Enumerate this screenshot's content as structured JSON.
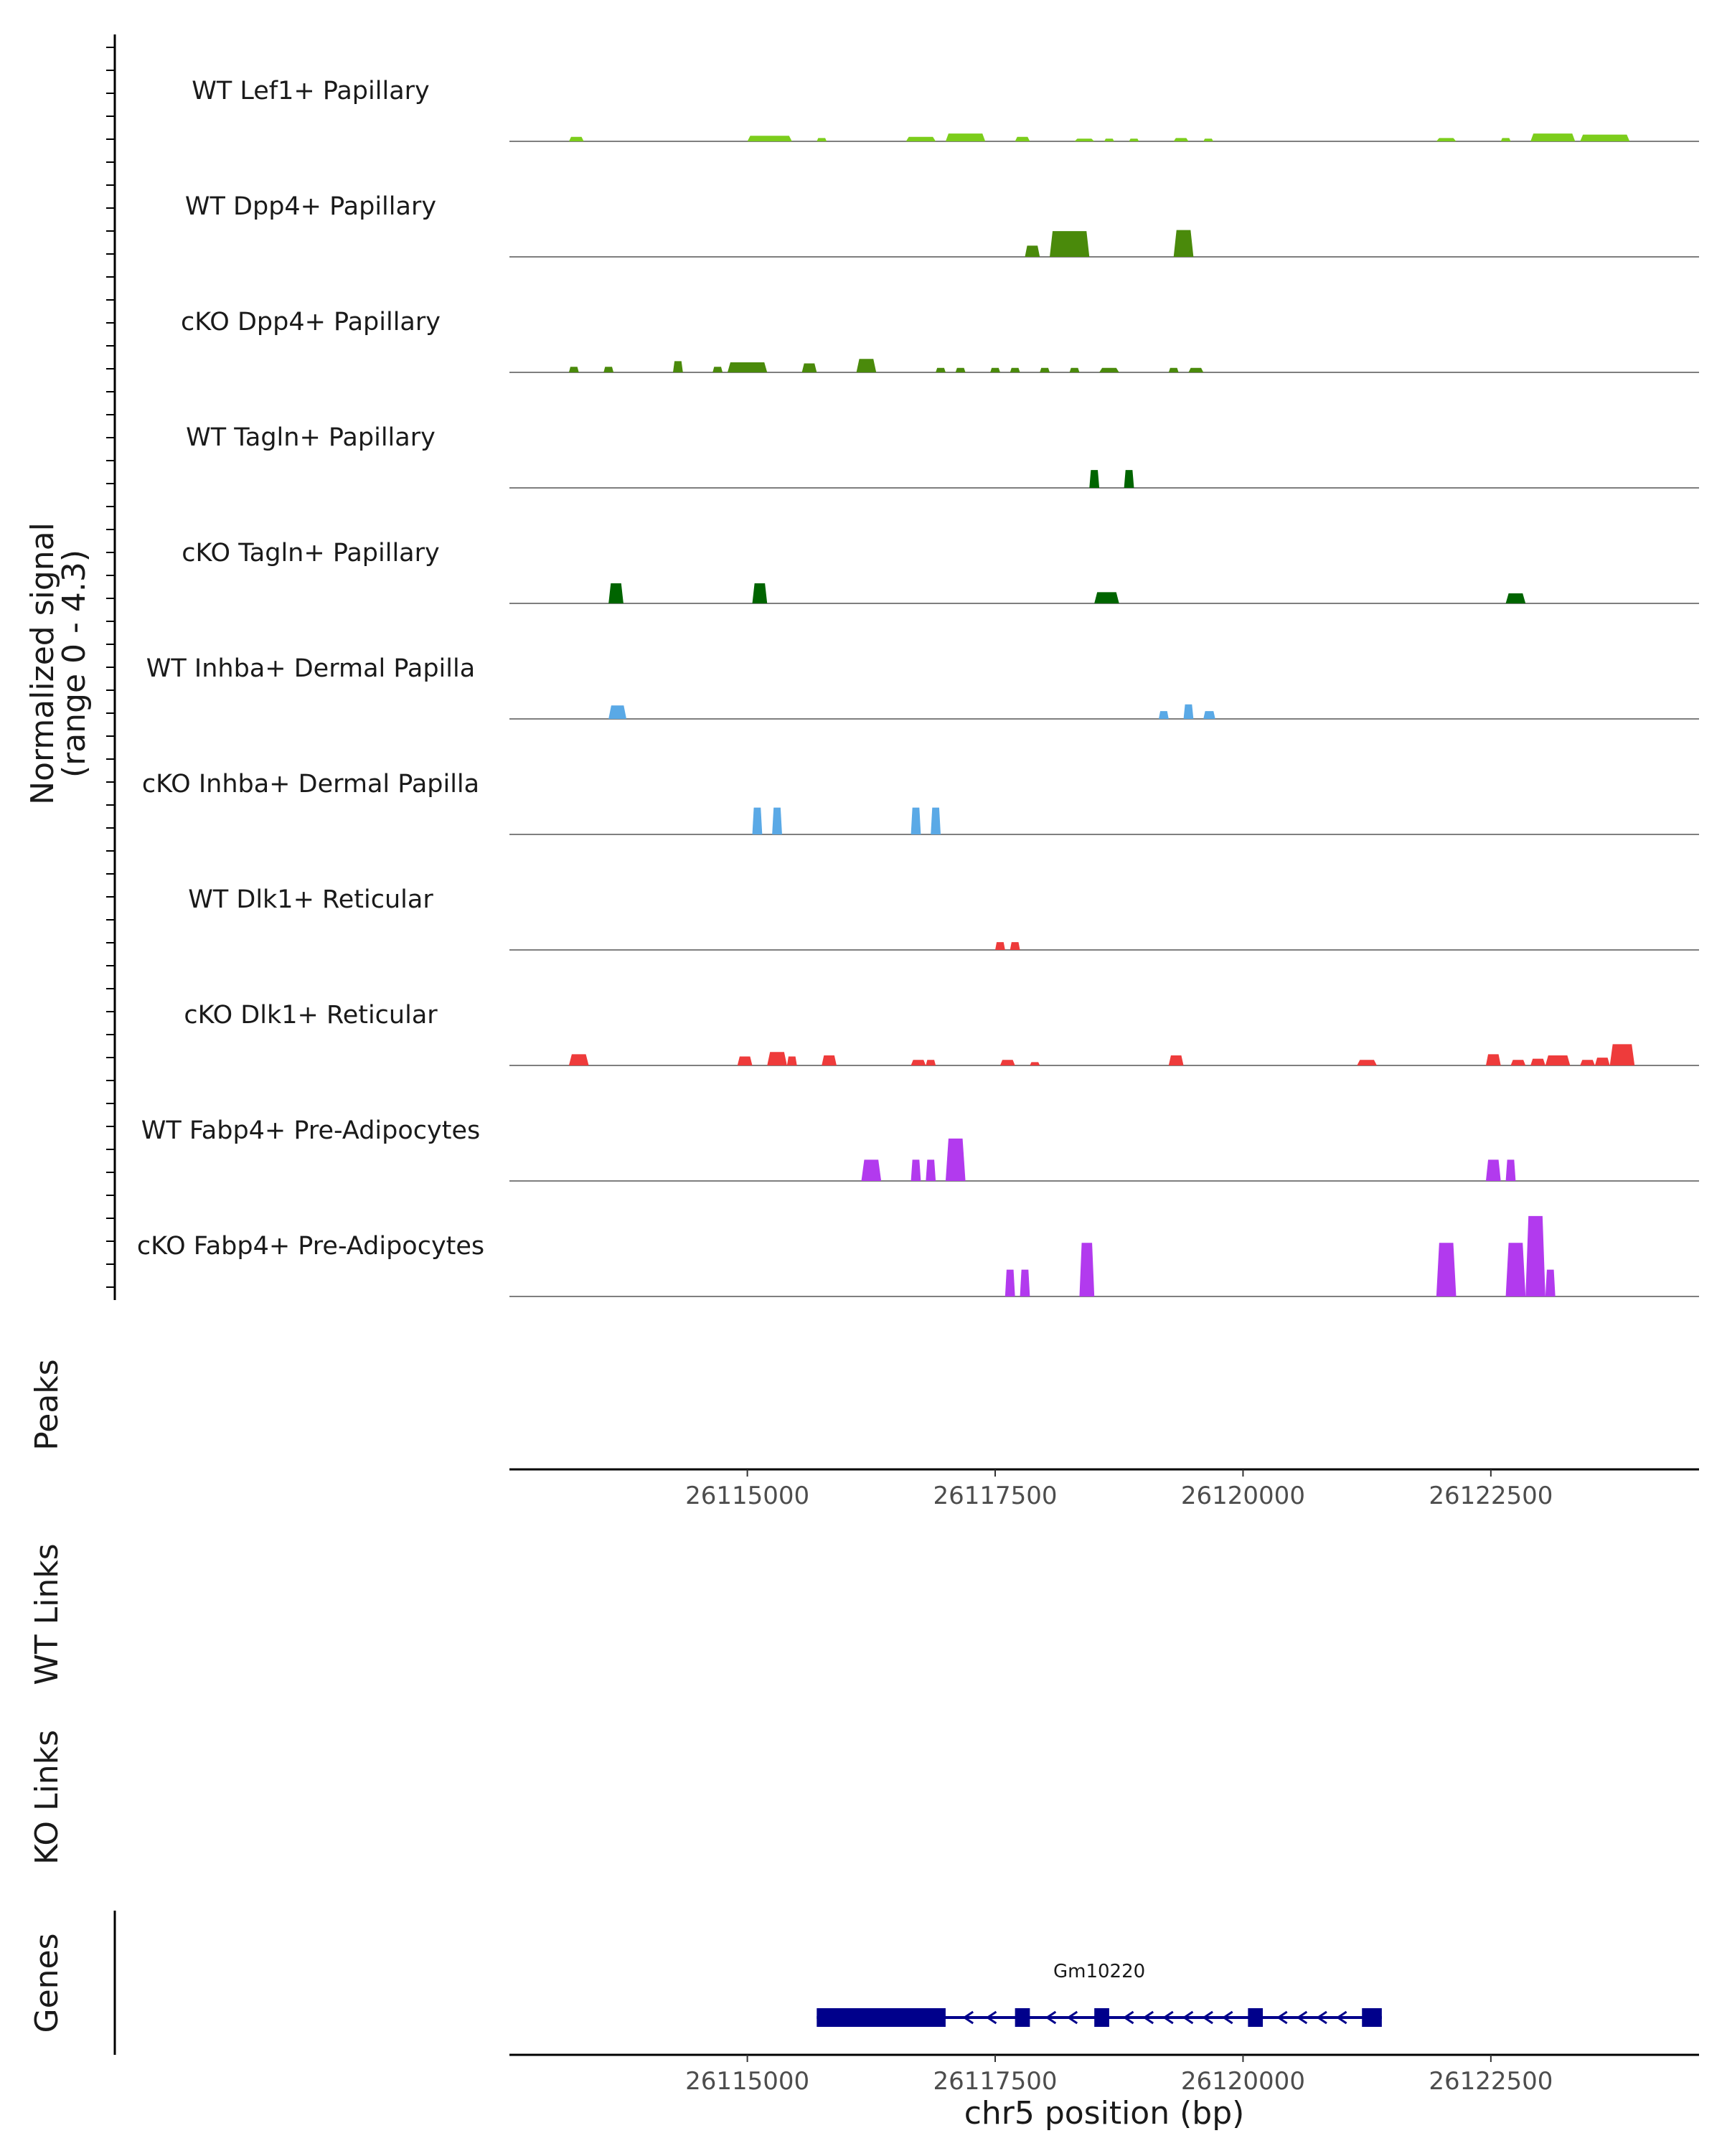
{
  "chart_data": {
    "type": "area",
    "title": "",
    "y_axis_label": "Normalized signal",
    "y_axis_sublabel": "(range 0 - 4.3)",
    "ylim": [
      0,
      4.3
    ],
    "region_xlim": [
      26112600,
      26124600
    ],
    "x_ticks": [
      {
        "value": 26115000,
        "label": "26115000"
      },
      {
        "value": 26117500,
        "label": "26117500"
      },
      {
        "value": 26120000,
        "label": "26120000"
      },
      {
        "value": 26122500,
        "label": "26122500"
      }
    ],
    "xlabel": "chr5 position (bp)",
    "panel_labels": {
      "peaks": "Peaks",
      "wt_links": "WT Links",
      "ko_links": "KO Links",
      "genes": "Genes"
    },
    "tracks": [
      {
        "name": "WT Lef1+ Papillary",
        "color": "#7CCD1C",
        "peaks": [
          [
            26113200,
            26113350,
            0.2
          ],
          [
            26115000,
            26115450,
            0.25
          ],
          [
            26115700,
            26115800,
            0.15
          ],
          [
            26116600,
            26116900,
            0.2
          ],
          [
            26117000,
            26117400,
            0.35
          ],
          [
            26117700,
            26117850,
            0.2
          ],
          [
            26118300,
            26118500,
            0.12
          ],
          [
            26118600,
            26118700,
            0.12
          ],
          [
            26118850,
            26118950,
            0.12
          ],
          [
            26119300,
            26119450,
            0.15
          ],
          [
            26119600,
            26119700,
            0.12
          ],
          [
            26121950,
            26122150,
            0.15
          ],
          [
            26122600,
            26122700,
            0.15
          ],
          [
            26122900,
            26123350,
            0.35
          ],
          [
            26123400,
            26123900,
            0.3
          ]
        ]
      },
      {
        "name": "WT Dpp4+ Papillary",
        "color": "#4A8A0B",
        "peaks": [
          [
            26117800,
            26117950,
            0.5
          ],
          [
            26118050,
            26118450,
            1.15
          ],
          [
            26119300,
            26119500,
            1.2
          ]
        ]
      },
      {
        "name": "cKO Dpp4+ Papillary",
        "color": "#4A8A0B",
        "peaks": [
          [
            26113200,
            26113300,
            0.25
          ],
          [
            26113550,
            26113650,
            0.25
          ],
          [
            26114250,
            26114350,
            0.5
          ],
          [
            26114650,
            26114750,
            0.25
          ],
          [
            26114800,
            26115200,
            0.45
          ],
          [
            26115550,
            26115700,
            0.4
          ],
          [
            26116100,
            26116300,
            0.6
          ],
          [
            26116900,
            26117000,
            0.2
          ],
          [
            26117100,
            26117200,
            0.2
          ],
          [
            26117450,
            26117550,
            0.2
          ],
          [
            26117650,
            26117750,
            0.2
          ],
          [
            26117950,
            26118050,
            0.2
          ],
          [
            26118250,
            26118350,
            0.2
          ],
          [
            26118550,
            26118750,
            0.2
          ],
          [
            26119250,
            26119350,
            0.2
          ],
          [
            26119450,
            26119600,
            0.2
          ]
        ]
      },
      {
        "name": "WT Tagln+ Papillary",
        "color": "#006400",
        "peaks": [
          [
            26118450,
            26118550,
            0.8
          ],
          [
            26118800,
            26118900,
            0.8
          ]
        ]
      },
      {
        "name": "cKO Tagln+ Papillary",
        "color": "#006400",
        "peaks": [
          [
            26113600,
            26113750,
            0.9
          ],
          [
            26115050,
            26115200,
            0.9
          ],
          [
            26118500,
            26118750,
            0.5
          ],
          [
            26122650,
            26122850,
            0.45
          ]
        ]
      },
      {
        "name": "WT Inhba+ Dermal Papilla",
        "color": "#5AA9E6",
        "peaks": [
          [
            26113600,
            26113780,
            0.6
          ],
          [
            26119150,
            26119250,
            0.35
          ],
          [
            26119400,
            26119500,
            0.65
          ],
          [
            26119600,
            26119720,
            0.35
          ]
        ]
      },
      {
        "name": "cKO Inhba+ Dermal Papilla",
        "color": "#5AA9E6",
        "peaks": [
          [
            26115050,
            26115150,
            1.2
          ],
          [
            26115250,
            26115350,
            1.2
          ],
          [
            26116650,
            26116750,
            1.2
          ],
          [
            26116850,
            26116950,
            1.2
          ]
        ]
      },
      {
        "name": "WT Dlk1+ Reticular",
        "color": "#EE3B3B",
        "peaks": [
          [
            26117500,
            26117600,
            0.35
          ],
          [
            26117650,
            26117750,
            0.35
          ]
        ]
      },
      {
        "name": "cKO Dlk1+ Reticular",
        "color": "#EE3B3B",
        "peaks": [
          [
            26113200,
            26113400,
            0.5
          ],
          [
            26114900,
            26115050,
            0.4
          ],
          [
            26115200,
            26115400,
            0.6
          ],
          [
            26115400,
            26115500,
            0.4
          ],
          [
            26115750,
            26115900,
            0.45
          ],
          [
            26116650,
            26116800,
            0.25
          ],
          [
            26116800,
            26116900,
            0.25
          ],
          [
            26117550,
            26117700,
            0.25
          ],
          [
            26117850,
            26117950,
            0.15
          ],
          [
            26119250,
            26119400,
            0.45
          ],
          [
            26121150,
            26121350,
            0.25
          ],
          [
            26122450,
            26122600,
            0.5
          ],
          [
            26122700,
            26122850,
            0.25
          ],
          [
            26122900,
            26123050,
            0.3
          ],
          [
            26123050,
            26123300,
            0.45
          ],
          [
            26123400,
            26123550,
            0.25
          ],
          [
            26123550,
            26123700,
            0.35
          ],
          [
            26123700,
            26123950,
            0.95
          ]
        ]
      },
      {
        "name": "WT Fabp4+ Pre-Adipocytes",
        "color": "#B23AEE",
        "peaks": [
          [
            26116150,
            26116350,
            0.95
          ],
          [
            26116650,
            26116750,
            0.95
          ],
          [
            26116800,
            26116900,
            0.95
          ],
          [
            26117000,
            26117200,
            1.9
          ],
          [
            26122450,
            26122600,
            0.95
          ],
          [
            26122650,
            26122750,
            0.95
          ]
        ]
      },
      {
        "name": "cKO Fabp4+ Pre-Adipocytes",
        "color": "#B23AEE",
        "peaks": [
          [
            26117600,
            26117700,
            1.2
          ],
          [
            26117750,
            26117850,
            1.2
          ],
          [
            26118350,
            26118500,
            2.4
          ],
          [
            26121950,
            26122150,
            2.4
          ],
          [
            26122650,
            26122850,
            2.4
          ],
          [
            26122850,
            26123050,
            3.6
          ],
          [
            26123050,
            26123150,
            1.2
          ]
        ]
      }
    ],
    "gene": {
      "name": "Gm10220",
      "color": "#00008B",
      "strand": "-",
      "start": 26115700,
      "end": 26121400,
      "exons": [
        [
          26115700,
          26117000
        ],
        [
          26117700,
          26117850
        ],
        [
          26118500,
          26118650
        ],
        [
          26120050,
          26120200
        ],
        [
          26121200,
          26121400
        ]
      ]
    }
  }
}
